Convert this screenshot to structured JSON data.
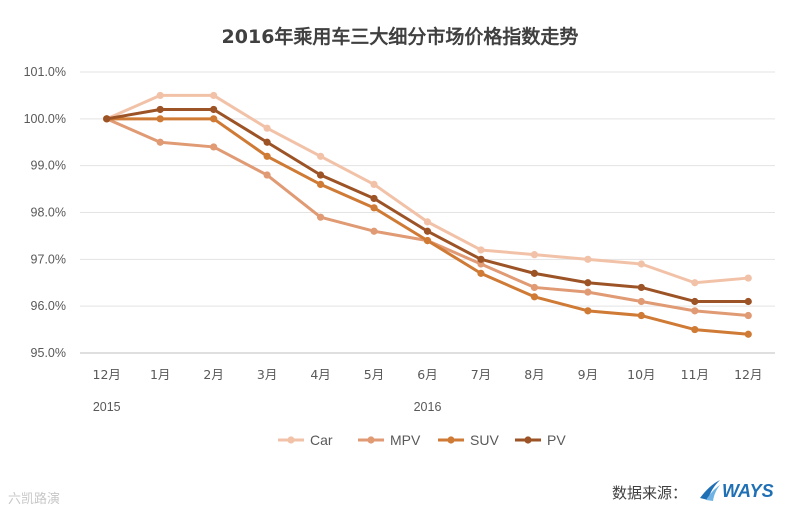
{
  "chart_data": {
    "type": "line",
    "title": "2016年乘用车三大细分市场价格指数走势",
    "categories": [
      "12月",
      "1月",
      "2月",
      "3月",
      "4月",
      "5月",
      "6月",
      "7月",
      "8月",
      "9月",
      "10月",
      "11月",
      "12月"
    ],
    "year_labels": [
      {
        "category_index": 0,
        "text": "2015"
      },
      {
        "category_index": 6,
        "text": "2016"
      }
    ],
    "ylim": [
      95.0,
      101.0
    ],
    "yticks": [
      95.0,
      96.0,
      97.0,
      98.0,
      99.0,
      100.0,
      101.0
    ],
    "ytick_labels": [
      "95.0%",
      "96.0%",
      "97.0%",
      "98.0%",
      "99.0%",
      "100.0%",
      "101.0%"
    ],
    "grid": true,
    "legend_position": "bottom",
    "series": [
      {
        "name": "Car",
        "color": "#f2c2a8",
        "values": [
          100.0,
          100.5,
          100.5,
          99.8,
          99.2,
          98.6,
          97.8,
          97.2,
          97.1,
          97.0,
          96.9,
          96.5,
          96.6
        ]
      },
      {
        "name": "MPV",
        "color": "#e09a74",
        "values": [
          100.0,
          99.5,
          99.4,
          98.8,
          97.9,
          97.6,
          97.4,
          96.9,
          96.4,
          96.3,
          96.1,
          95.9,
          95.8
        ]
      },
      {
        "name": "SUV",
        "color": "#cf7a35",
        "values": [
          100.0,
          100.0,
          100.0,
          99.2,
          98.6,
          98.1,
          97.4,
          96.7,
          96.2,
          95.9,
          95.8,
          95.5,
          95.4
        ]
      },
      {
        "name": "PV",
        "color": "#9c5326",
        "values": [
          100.0,
          100.2,
          100.2,
          99.5,
          98.8,
          98.3,
          97.6,
          97.0,
          96.7,
          96.5,
          96.4,
          96.1,
          96.1
        ]
      }
    ]
  },
  "footer": {
    "source_label": "数据来源：",
    "brand": "WAYS",
    "watermark": "六凯路演"
  }
}
